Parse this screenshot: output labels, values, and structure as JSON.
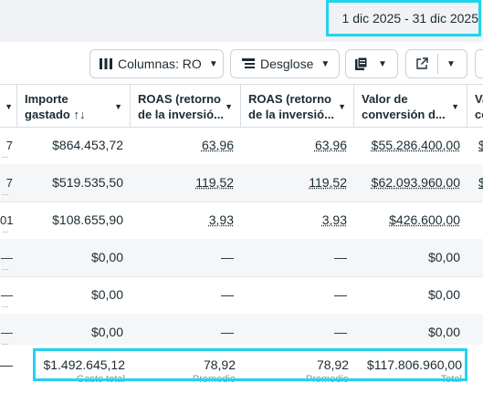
{
  "date_range": {
    "label": "1 dic 2025 - 31 dic 2025"
  },
  "toolbar": {
    "columns_label": "Columnas: RO",
    "breakdown_label": "Desglose"
  },
  "headers": [
    {
      "line1": "Importe",
      "line2": "gastado ↑↓"
    },
    {
      "line1": "ROAS (retorno",
      "line2": "de la inversió..."
    },
    {
      "line1": "ROAS (retorno",
      "line2": "de la inversió..."
    },
    {
      "line1": "Valor de",
      "line2": "conversión d..."
    },
    {
      "line1": "Va",
      "line2": "co"
    }
  ],
  "rows": [
    {
      "left": "7",
      "spend": "$864.453,72",
      "roas1": "63,96",
      "roas2": "63,96",
      "value": "$55.286.400,00",
      "extra": "$"
    },
    {
      "left": "7",
      "spend": "$519.535,50",
      "roas1": "119,52",
      "roas2": "119,52",
      "value": "$62.093.960,00",
      "extra": "$"
    },
    {
      "left": "01",
      "spend": "$108.655,90",
      "roas1": "3,93",
      "roas2": "3,93",
      "value": "$426.600,00",
      "extra": ""
    },
    {
      "left": "—",
      "spend": "$0,00",
      "roas1": "—",
      "roas2": "—",
      "value": "$0,00",
      "extra": ""
    },
    {
      "left": "—",
      "spend": "$0,00",
      "roas1": "—",
      "roas2": "—",
      "value": "$0,00",
      "extra": ""
    },
    {
      "left": "—",
      "spend": "$0,00",
      "roas1": "—",
      "roas2": "—",
      "value": "$0,00",
      "extra": ""
    }
  ],
  "totals": {
    "left": "—",
    "spend": "$1.492.645,12",
    "roas1": "78,92",
    "roas2": "78,92",
    "value": "$117.806.960,00",
    "spend_sub": "Gasto total",
    "roas1_sub": "Promedio",
    "roas2_sub": "Promedio",
    "value_sub": "Total"
  }
}
